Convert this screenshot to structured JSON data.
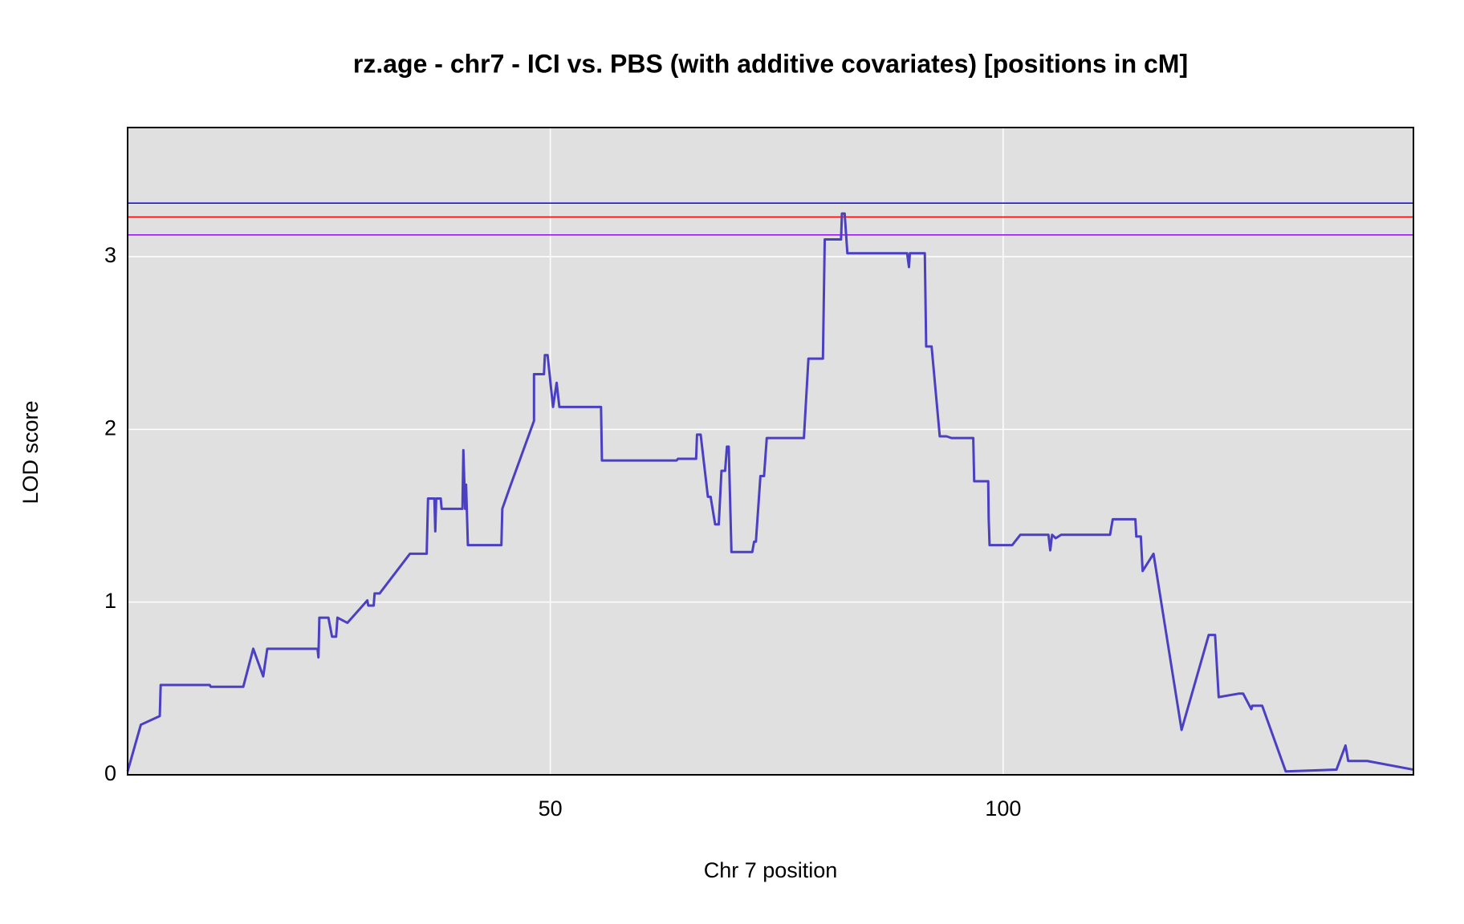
{
  "chart_data": {
    "type": "line",
    "title": "rz.age - chr7 - ICI vs. PBS (with additive covariates) [positions in cM]",
    "x_label": "Chr 7 position",
    "y_label": "LOD score",
    "xlim": [
      3.33,
      145.3
    ],
    "ylim": [
      0,
      3.748
    ],
    "xticks": [
      50,
      100
    ],
    "yticks": [
      0,
      1,
      2,
      3
    ],
    "grid": true,
    "hlines": [
      {
        "value": 3.31,
        "color": "#0000ff"
      },
      {
        "value": 3.23,
        "color": "#ff0000"
      },
      {
        "value": 3.126,
        "color": "#9900ff"
      }
    ],
    "series": [
      {
        "color": "#4b3fc4",
        "x": [
          3.33,
          4.79,
          6.88,
          6.98,
          12.4,
          12.5,
          16.1,
          17.2,
          18.3,
          18.75,
          24.3,
          24.4,
          24.5,
          25.5,
          25.9,
          26.35,
          26.5,
          27.6,
          29.8,
          29.9,
          30.5,
          30.6,
          31.15,
          34.5,
          36.35,
          36.5,
          37.2,
          37.3,
          37.4,
          37.9,
          38.0,
          40.3,
          40.4,
          40.6,
          40.7,
          40.9,
          44.6,
          44.7,
          45.5,
          48.2,
          48.2,
          49.3,
          49.4,
          49.7,
          50.3,
          50.7,
          51.0,
          55.6,
          55.7,
          58.75,
          58.85,
          63.95,
          64.1,
          66.1,
          66.2,
          66.6,
          67.4,
          67.7,
          68.2,
          68.6,
          68.9,
          69.3,
          69.5,
          69.7,
          70.0,
          72.3,
          72.5,
          72.7,
          73.2,
          73.6,
          73.9,
          78.0,
          78.5,
          80.1,
          80.3,
          82.1,
          82.2,
          82.5,
          82.8,
          87.7,
          89.4,
          89.6,
          89.7,
          91.35,
          91.5,
          92.1,
          93.0,
          93.75,
          94.3,
          96.7,
          96.8,
          98.35,
          98.4,
          98.5,
          101.0,
          101.9,
          105.0,
          105.2,
          105.4,
          105.8,
          106.4,
          108.5,
          108.75,
          111.8,
          112.1,
          114.6,
          114.7,
          115.2,
          115.4,
          116.6,
          119.7,
          122.7,
          123.4,
          123.8,
          126.0,
          126.5,
          127.4,
          127.5,
          128.6,
          131.2,
          136.8,
          137.8,
          138.1,
          140.2,
          145.3
        ],
        "values": [
          0.02,
          0.29,
          0.34,
          0.52,
          0.52,
          0.51,
          0.51,
          0.73,
          0.57,
          0.73,
          0.73,
          0.68,
          0.91,
          0.91,
          0.8,
          0.8,
          0.91,
          0.88,
          1.01,
          0.98,
          0.98,
          1.05,
          1.05,
          1.28,
          1.28,
          1.6,
          1.6,
          1.41,
          1.6,
          1.6,
          1.54,
          1.54,
          1.88,
          1.54,
          1.68,
          1.33,
          1.33,
          1.54,
          1.66,
          2.05,
          2.32,
          2.32,
          2.43,
          2.43,
          2.13,
          2.27,
          2.13,
          2.13,
          1.82,
          1.82,
          1.82,
          1.82,
          1.83,
          1.83,
          1.97,
          1.97,
          1.61,
          1.61,
          1.45,
          1.45,
          1.76,
          1.76,
          1.9,
          1.9,
          1.29,
          1.29,
          1.35,
          1.35,
          1.73,
          1.73,
          1.95,
          1.95,
          2.41,
          2.41,
          3.1,
          3.1,
          3.25,
          3.25,
          3.02,
          3.02,
          3.02,
          2.94,
          3.02,
          3.02,
          2.48,
          2.48,
          1.96,
          1.96,
          1.95,
          1.95,
          1.7,
          1.7,
          1.49,
          1.33,
          1.33,
          1.39,
          1.39,
          1.3,
          1.39,
          1.37,
          1.39,
          1.39,
          1.39,
          1.39,
          1.48,
          1.48,
          1.38,
          1.38,
          1.18,
          1.28,
          0.26,
          0.81,
          0.81,
          0.45,
          0.47,
          0.47,
          0.38,
          0.4,
          0.4,
          0.02,
          0.03,
          0.17,
          0.08,
          0.08,
          0.03
        ]
      }
    ]
  }
}
